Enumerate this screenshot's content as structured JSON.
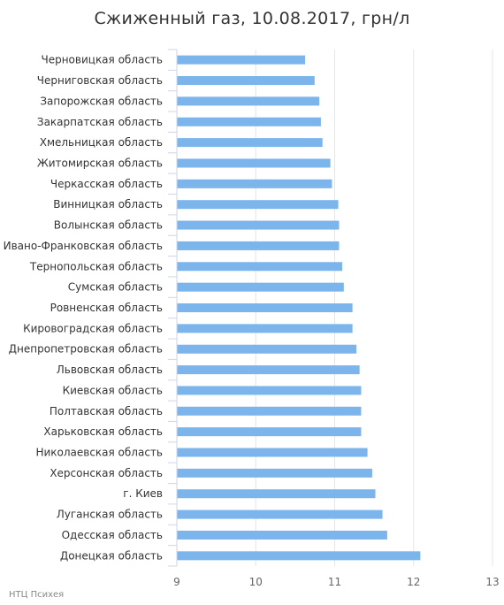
{
  "chart_data": {
    "type": "bar",
    "orientation": "horizontal",
    "title": "Сжиженный газ, 10.08.2017, грн/л",
    "categories": [
      "Черновицкая область",
      "Черниговская область",
      "Запорожская область",
      "Закарпатская область",
      "Хмельницкая область",
      "Житомирская область",
      "Черкасская область",
      "Винницкая область",
      "Волынская область",
      "Ивано-Франковская область",
      "Тернопольская область",
      "Сумская область",
      "Ровненская область",
      "Кировоградская область",
      "Днепропетровская область",
      "Львовская область",
      "Киевская область",
      "Полтавская область",
      "Харьковская область",
      "Николаевская область",
      "Херсонская область",
      "г. Киев",
      "Луганская область",
      "Одесская область",
      "Донецкая область"
    ],
    "values": [
      10.62,
      10.74,
      10.8,
      10.82,
      10.84,
      10.94,
      10.96,
      11.04,
      11.05,
      11.05,
      11.09,
      11.11,
      11.22,
      11.22,
      11.27,
      11.31,
      11.33,
      11.33,
      11.33,
      11.41,
      11.47,
      11.51,
      11.6,
      11.66,
      12.08
    ],
    "xlim": [
      9,
      13
    ],
    "x_ticks": [
      "9",
      "10",
      "11",
      "12",
      "13"
    ],
    "xlabel": "",
    "ylabel": "",
    "grid": true,
    "legend": "none",
    "bar_color": "#7cb5ec"
  },
  "credit": "НТЦ Психея"
}
